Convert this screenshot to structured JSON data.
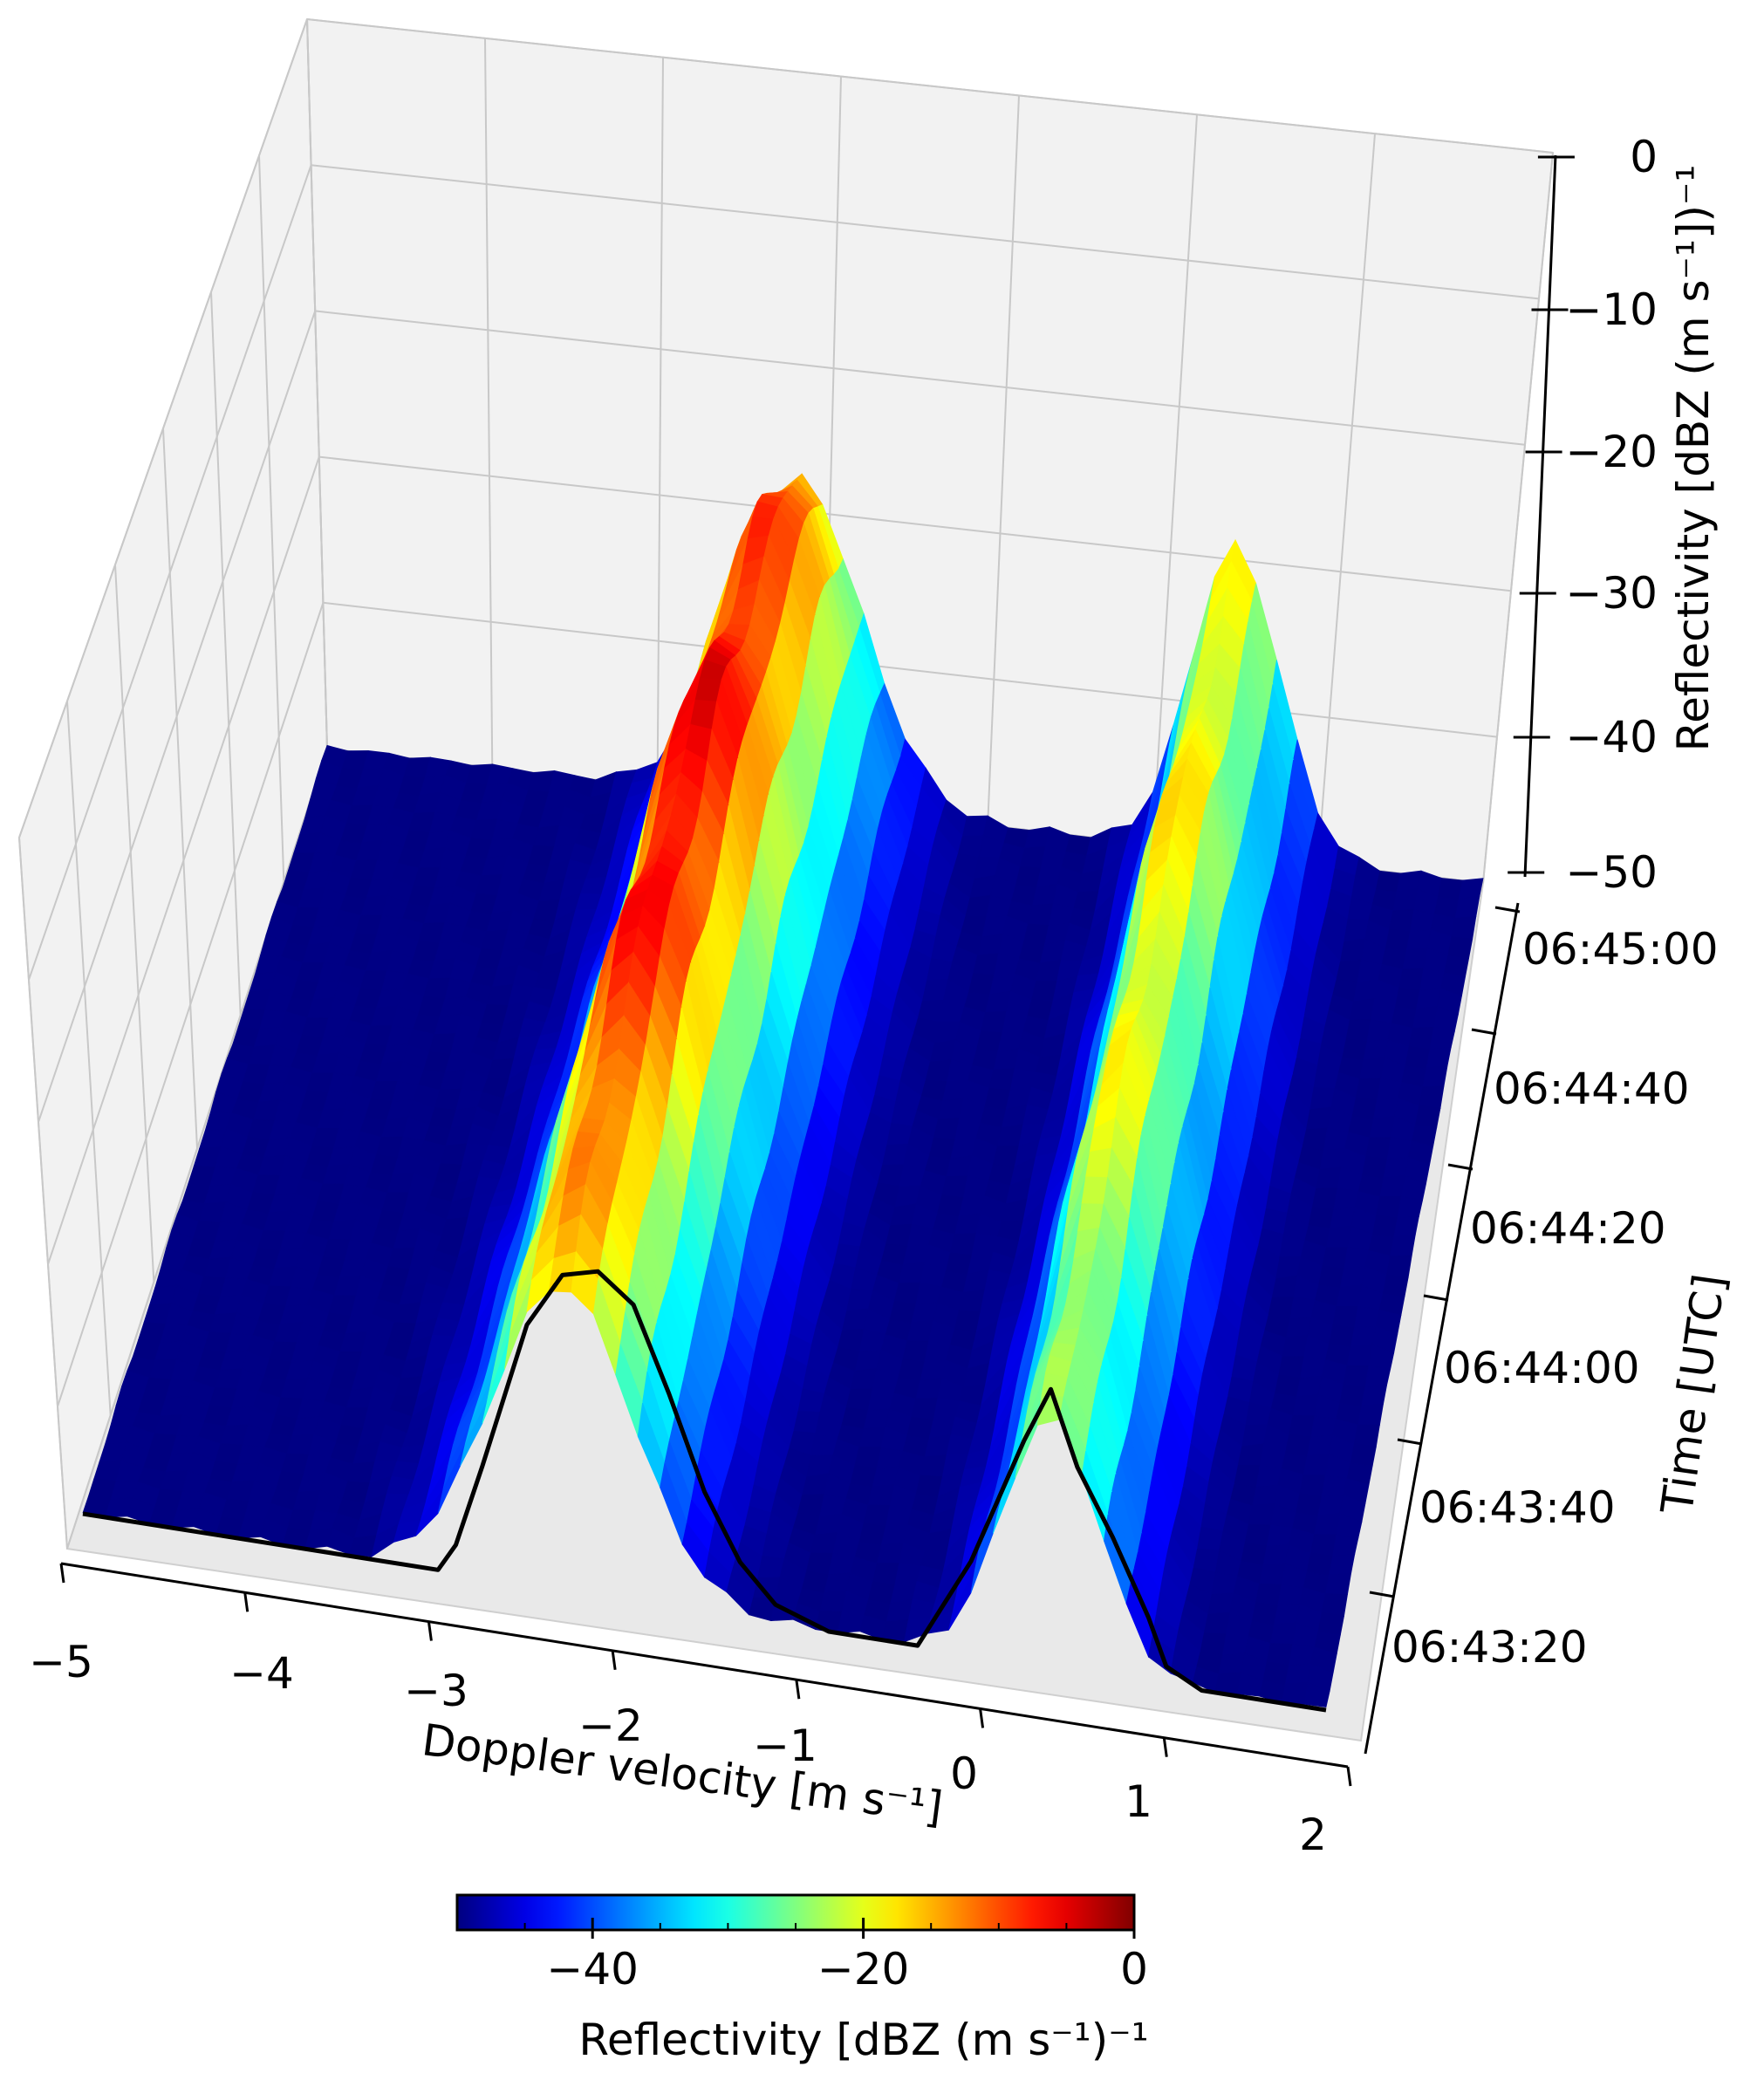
{
  "chart_data": {
    "type": "surface3d",
    "title": "",
    "colormap": "jet",
    "x_axis": {
      "label": "Doppler velocity [m s⁻¹]",
      "range": [
        -5,
        2
      ],
      "ticks": [
        "−5",
        "−4",
        "−3",
        "−2",
        "−1",
        "0",
        "1",
        "2"
      ]
    },
    "y_axis": {
      "label": "Time [UTC]",
      "range": [
        "06:43:10",
        "06:45:10"
      ],
      "ticks": [
        "06:43:20",
        "06:43:40",
        "06:44:00",
        "06:44:20",
        "06:44:40",
        "06:45:00"
      ]
    },
    "z_axis": {
      "label": "Reflectivity [dBZ (m s⁻¹])⁻¹",
      "range": [
        -50,
        0
      ],
      "ticks": [
        "0",
        "−10",
        "−20",
        "−30",
        "−40",
        "−50"
      ]
    },
    "colorbar": {
      "label": "Reflectivity [dBZ (m s⁻¹)⁻¹",
      "range": [
        -50,
        0
      ],
      "ticks": [
        "−40",
        "−20",
        "0"
      ]
    },
    "grid": true,
    "surface_description": "Doppler spectra over time: two reflectivity modes, a strong mode near −2.3 m s⁻¹ peaking near −5 dBZ and a weaker mode near 0.5 m s⁻¹ peaking near −17 dBZ; noise floor −50 dBZ",
    "front_profile": {
      "time": "06:43:10",
      "velocity": [
        -5.0,
        -3.0,
        -2.9,
        -2.75,
        -2.5,
        -2.3,
        -2.1,
        -1.9,
        -1.7,
        -1.5,
        -1.3,
        -1.1,
        -0.8,
        -0.3,
        0.0,
        0.3,
        0.45,
        0.6,
        0.8,
        1.0,
        1.1,
        1.3,
        1.5,
        1.7,
        2.0
      ],
      "reflectivity": [
        -50,
        -50,
        -47,
        -38,
        -22,
        -16,
        -15,
        -18,
        -27,
        -37,
        -44,
        -48,
        -50,
        -50,
        -40,
        -26,
        -20,
        -28,
        -35,
        -43,
        -48,
        -50,
        -50,
        -50,
        -50
      ]
    }
  }
}
